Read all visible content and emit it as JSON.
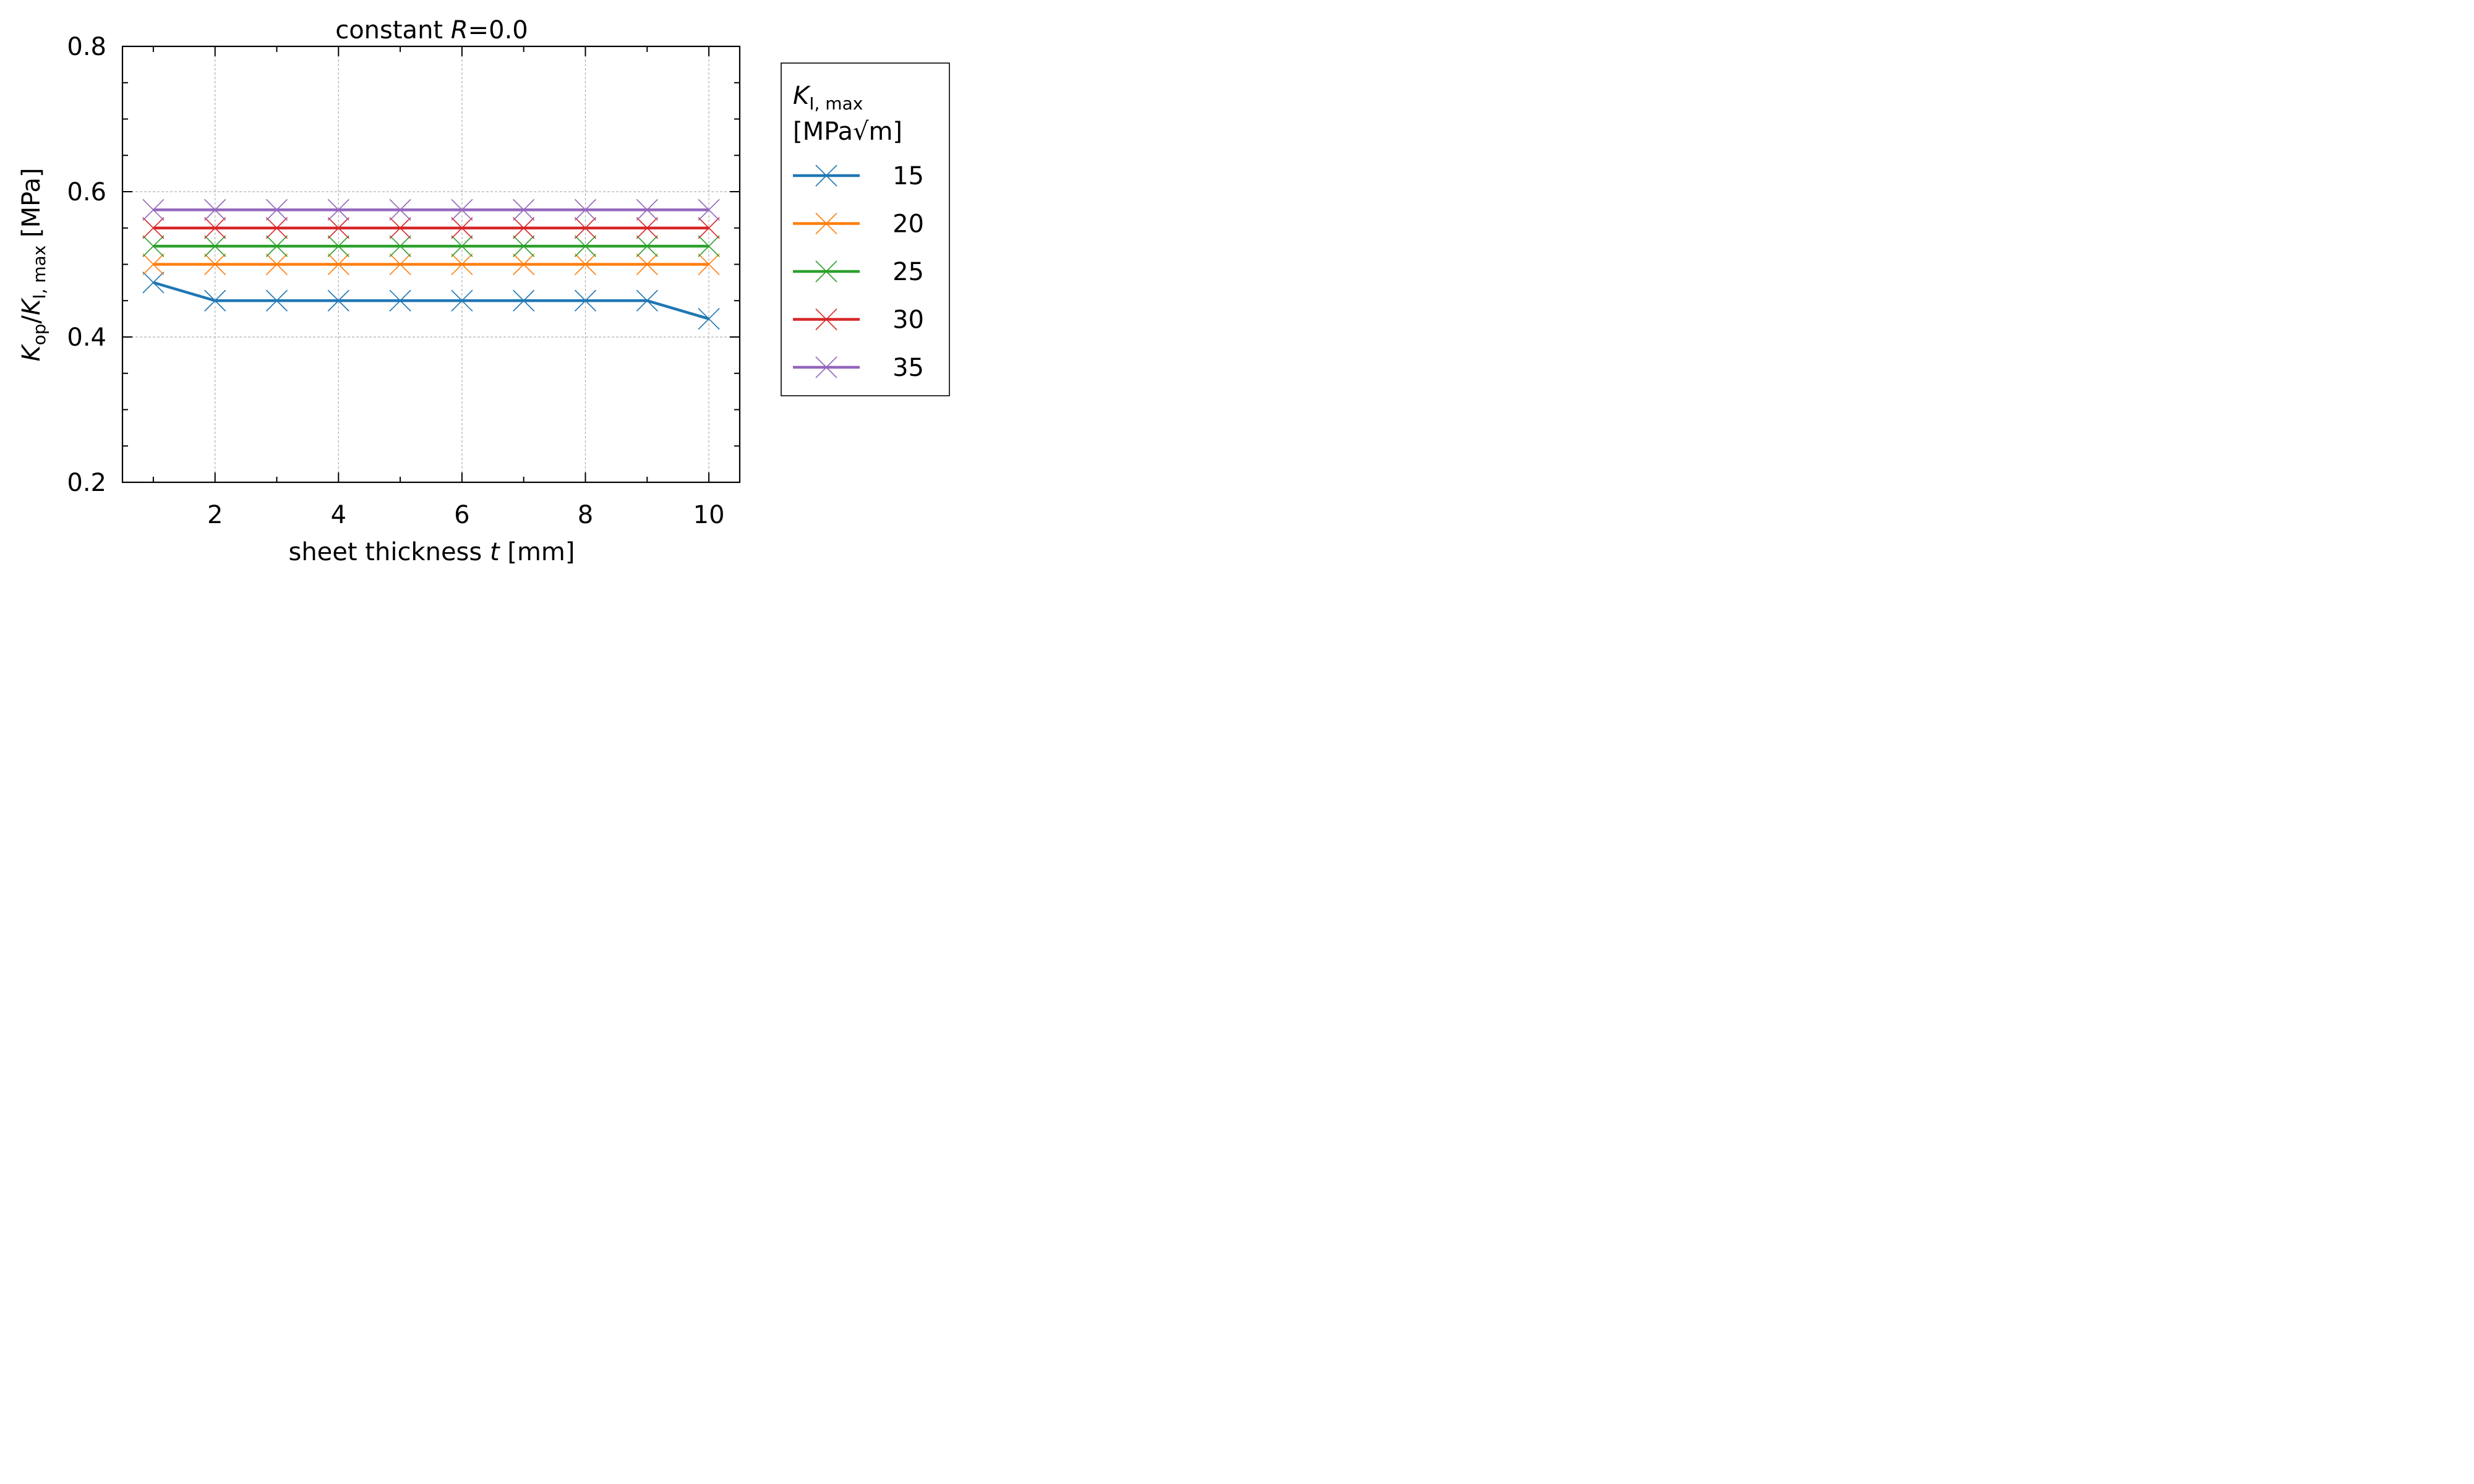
{
  "chart_data": {
    "type": "line",
    "title": {
      "prefix": "constant ",
      "var": "R",
      "suffix": "=0.0"
    },
    "xlabel": {
      "prefix": "sheet thickness ",
      "var": "t",
      "suffix": " [mm]"
    },
    "ylabel": {
      "k": "K",
      "sub1": "op",
      "slash": "/",
      "k2": "K",
      "sub2": "I, max",
      "suffix": " [MPa]"
    },
    "xlim": [
      0.5,
      10.5
    ],
    "ylim": [
      0.2,
      0.8
    ],
    "x_ticks": [
      2,
      4,
      6,
      8,
      10
    ],
    "y_ticks": [
      0.2,
      0.4,
      0.6,
      0.8
    ],
    "y_tick_labels": [
      "0.2",
      "0.4",
      "0.6",
      "0.8"
    ],
    "grid": true,
    "legend": {
      "placement": "outside-right",
      "title_k": "K",
      "title_sub": "I, max",
      "title_unit": "[MPa√m]"
    },
    "x": [
      1,
      2,
      3,
      4,
      5,
      6,
      7,
      8,
      9,
      10
    ],
    "series": [
      {
        "name": "15",
        "color": "#1f77b4",
        "values": [
          0.475,
          0.45,
          0.45,
          0.45,
          0.45,
          0.45,
          0.45,
          0.45,
          0.45,
          0.425
        ]
      },
      {
        "name": "20",
        "color": "#ff7f0e",
        "values": [
          0.5,
          0.5,
          0.5,
          0.5,
          0.5,
          0.5,
          0.5,
          0.5,
          0.5,
          0.5
        ]
      },
      {
        "name": "25",
        "color": "#2ca02c",
        "values": [
          0.525,
          0.525,
          0.525,
          0.525,
          0.525,
          0.525,
          0.525,
          0.525,
          0.525,
          0.525
        ]
      },
      {
        "name": "30",
        "color": "#d62728",
        "values": [
          0.55,
          0.55,
          0.55,
          0.55,
          0.55,
          0.55,
          0.55,
          0.55,
          0.55,
          0.55
        ]
      },
      {
        "name": "35",
        "color": "#9467bd",
        "values": [
          0.575,
          0.575,
          0.575,
          0.575,
          0.575,
          0.575,
          0.575,
          0.575,
          0.575,
          0.575
        ]
      }
    ]
  }
}
